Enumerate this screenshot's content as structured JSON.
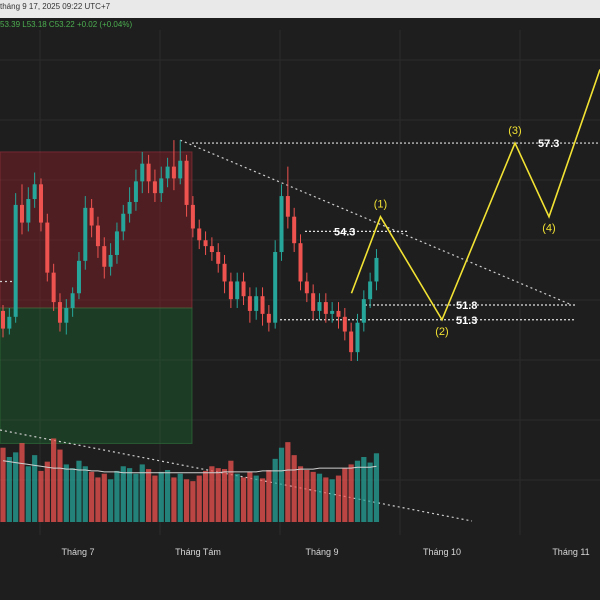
{
  "header": {
    "datetime": "tháng 9 17, 2025 09:22 UTC+7",
    "ohlc": "53.39 L53.18 C53.22 +0.02 (+0.04%)"
  },
  "colors": {
    "up": "#26a69a",
    "down": "#ef5350",
    "forecast": "#f2e233",
    "volume_up": "#26a69a",
    "volume_down": "#ef5350"
  },
  "chart_data": {
    "type": "candlestick",
    "ylim": [
      44.5,
      60.8
    ],
    "x_ticks": [
      "Tháng 7",
      "Tháng Tám",
      "Tháng 9",
      "Tháng 10",
      "Tháng 11"
    ],
    "candles": [
      [
        51.6,
        51.0,
        51.8,
        50.7
      ],
      [
        51.0,
        51.4,
        51.7,
        50.8
      ],
      [
        51.4,
        55.2,
        55.6,
        51.2
      ],
      [
        55.2,
        54.6,
        55.9,
        54.2
      ],
      [
        54.6,
        55.4,
        55.8,
        54.3
      ],
      [
        55.4,
        55.9,
        56.3,
        55.1
      ],
      [
        55.9,
        54.6,
        56.1,
        54.3
      ],
      [
        54.6,
        52.9,
        54.9,
        52.6
      ],
      [
        52.9,
        51.9,
        53.2,
        51.6
      ],
      [
        51.9,
        51.2,
        52.2,
        50.9
      ],
      [
        51.2,
        51.7,
        52.0,
        50.8
      ],
      [
        51.7,
        52.2,
        52.4,
        51.4
      ],
      [
        52.2,
        53.3,
        53.6,
        52.0
      ],
      [
        53.3,
        55.1,
        55.5,
        53.0
      ],
      [
        55.1,
        54.5,
        55.4,
        54.1
      ],
      [
        54.5,
        53.8,
        54.8,
        53.4
      ],
      [
        53.8,
        53.1,
        54.1,
        52.7
      ],
      [
        53.1,
        53.5,
        53.9,
        52.8
      ],
      [
        53.5,
        54.3,
        54.6,
        53.2
      ],
      [
        54.3,
        54.9,
        55.2,
        54.0
      ],
      [
        54.9,
        55.3,
        55.8,
        54.6
      ],
      [
        55.3,
        56.0,
        56.4,
        55.0
      ],
      [
        56.0,
        56.6,
        57.0,
        55.6
      ],
      [
        56.6,
        56.0,
        56.9,
        55.6
      ],
      [
        56.0,
        55.6,
        56.4,
        55.3
      ],
      [
        55.6,
        56.1,
        56.5,
        55.3
      ],
      [
        56.1,
        56.5,
        56.8,
        55.8
      ],
      [
        56.5,
        56.1,
        57.4,
        55.7
      ],
      [
        56.1,
        56.7,
        57.4,
        55.9
      ],
      [
        56.7,
        55.2,
        56.9,
        54.8
      ],
      [
        55.2,
        54.4,
        55.5,
        54.1
      ],
      [
        54.4,
        54.0,
        54.7,
        53.7
      ],
      [
        54.0,
        53.8,
        54.3,
        53.5
      ],
      [
        53.8,
        53.6,
        54.1,
        53.3
      ],
      [
        53.6,
        53.2,
        53.9,
        52.9
      ],
      [
        53.2,
        52.6,
        53.5,
        52.2
      ],
      [
        52.6,
        52.0,
        52.9,
        51.7
      ],
      [
        52.0,
        52.6,
        52.9,
        51.7
      ],
      [
        52.6,
        52.1,
        52.9,
        51.8
      ],
      [
        52.1,
        51.6,
        52.4,
        51.2
      ],
      [
        51.6,
        52.1,
        52.4,
        51.3
      ],
      [
        52.1,
        51.5,
        52.4,
        51.1
      ],
      [
        51.5,
        51.2,
        51.8,
        50.9
      ],
      [
        51.2,
        53.6,
        54.0,
        51.0
      ],
      [
        53.6,
        55.5,
        55.9,
        53.3
      ],
      [
        55.5,
        54.8,
        56.5,
        54.4
      ],
      [
        54.8,
        53.9,
        55.1,
        53.6
      ],
      [
        53.9,
        52.6,
        54.2,
        52.3
      ],
      [
        52.6,
        52.2,
        52.9,
        51.9
      ],
      [
        52.2,
        51.6,
        52.5,
        51.3
      ],
      [
        51.6,
        51.9,
        52.2,
        51.3
      ],
      [
        51.9,
        51.5,
        52.2,
        51.2
      ],
      [
        51.5,
        51.6,
        51.9,
        51.2
      ],
      [
        51.6,
        51.4,
        51.9,
        51.0
      ],
      [
        51.4,
        50.9,
        51.7,
        50.6
      ],
      [
        50.9,
        50.2,
        51.2,
        49.9
      ],
      [
        50.2,
        51.2,
        51.5,
        49.9
      ],
      [
        51.2,
        52.0,
        52.3,
        50.9
      ],
      [
        52.0,
        52.6,
        52.9,
        51.7
      ],
      [
        52.6,
        53.4,
        53.7,
        52.3
      ]
    ],
    "volumes": [
      80,
      70,
      75,
      85,
      60,
      72,
      55,
      65,
      90,
      78,
      62,
      58,
      66,
      60,
      54,
      48,
      52,
      46,
      55,
      60,
      58,
      52,
      62,
      57,
      50,
      54,
      56,
      48,
      52,
      46,
      44,
      50,
      55,
      60,
      58,
      57,
      66,
      52,
      48,
      54,
      50,
      47,
      56,
      68,
      80,
      86,
      72,
      60,
      56,
      54,
      52,
      48,
      46,
      50,
      58,
      62,
      66,
      70,
      64,
      74
    ],
    "volume_avg": [
      66,
      65,
      64,
      63,
      62,
      61,
      60,
      59,
      58,
      58,
      57,
      57,
      56,
      56,
      55,
      55,
      54,
      54,
      54,
      53,
      53,
      53,
      53,
      53,
      53,
      53,
      53,
      53,
      53,
      53,
      53,
      53,
      53,
      53,
      53,
      54,
      54,
      54,
      54,
      54,
      54,
      55,
      55,
      55,
      55,
      56,
      56,
      57,
      57,
      57,
      58,
      58,
      58,
      58,
      58,
      58,
      59,
      59,
      59,
      60
    ],
    "zones": [
      {
        "top": 57.0,
        "bottom": 51.7,
        "kind": "supply"
      },
      {
        "top": 51.7,
        "bottom": 47.1,
        "kind": "demand"
      }
    ],
    "levels": [
      {
        "value": 54.3,
        "label": "54.3"
      },
      {
        "value": 51.8,
        "label": "51.8"
      },
      {
        "value": 51.3,
        "label": "51.3"
      },
      {
        "value": 57.3,
        "label": "57.3"
      }
    ],
    "forecast_path": [
      52.2,
      54.8,
      51.3,
      57.3,
      54.8,
      59.8
    ],
    "wave_labels": [
      "(1)",
      "(2)",
      "(3)",
      "(4)"
    ]
  }
}
